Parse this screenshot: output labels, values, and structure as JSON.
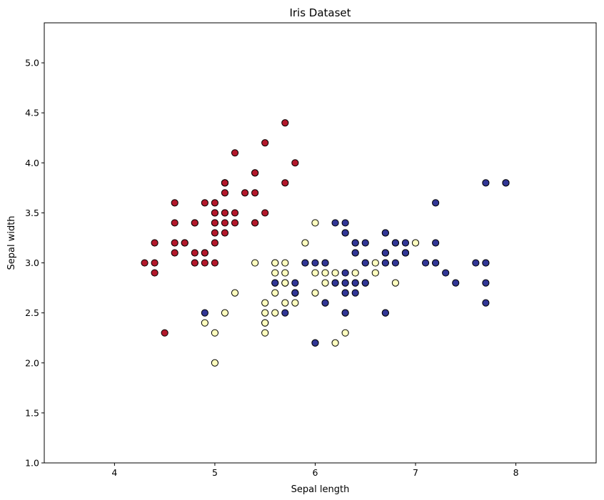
{
  "chart_data": {
    "type": "scatter",
    "title": "Iris Dataset",
    "xlabel": "Sepal length",
    "ylabel": "Sepal width",
    "xlim": [
      3.3,
      8.8
    ],
    "ylim": [
      1.0,
      5.4
    ],
    "xticks": [
      4,
      5,
      6,
      7,
      8
    ],
    "xtick_labels": [
      "4",
      "5",
      "6",
      "7",
      "8"
    ],
    "yticks": [
      1.0,
      1.5,
      2.0,
      2.5,
      3.0,
      3.5,
      4.0,
      4.5,
      5.0
    ],
    "ytick_labels": [
      "1.0",
      "1.5",
      "2.0",
      "2.5",
      "3.0",
      "3.5",
      "4.0",
      "4.5",
      "5.0"
    ],
    "grid": false,
    "series": [
      {
        "color": "#b2182b",
        "points": [
          [
            5.1,
            3.5
          ],
          [
            4.9,
            3.0
          ],
          [
            4.7,
            3.2
          ],
          [
            4.6,
            3.1
          ],
          [
            5.0,
            3.6
          ],
          [
            5.4,
            3.9
          ],
          [
            4.6,
            3.4
          ],
          [
            5.0,
            3.4
          ],
          [
            4.4,
            2.9
          ],
          [
            4.9,
            3.1
          ],
          [
            5.4,
            3.7
          ],
          [
            4.8,
            3.4
          ],
          [
            4.8,
            3.0
          ],
          [
            4.3,
            3.0
          ],
          [
            5.8,
            4.0
          ],
          [
            5.7,
            4.4
          ],
          [
            5.4,
            3.9
          ],
          [
            5.1,
            3.5
          ],
          [
            5.7,
            3.8
          ],
          [
            5.1,
            3.8
          ],
          [
            5.4,
            3.4
          ],
          [
            5.1,
            3.7
          ],
          [
            4.6,
            3.6
          ],
          [
            5.1,
            3.3
          ],
          [
            4.8,
            3.4
          ],
          [
            5.0,
            3.0
          ],
          [
            5.0,
            3.4
          ],
          [
            5.2,
            3.5
          ],
          [
            5.2,
            3.4
          ],
          [
            4.7,
            3.2
          ],
          [
            4.8,
            3.1
          ],
          [
            5.4,
            3.4
          ],
          [
            5.2,
            4.1
          ],
          [
            5.5,
            4.2
          ],
          [
            4.9,
            3.1
          ],
          [
            5.0,
            3.2
          ],
          [
            5.5,
            3.5
          ],
          [
            4.9,
            3.6
          ],
          [
            4.4,
            3.0
          ],
          [
            5.1,
            3.4
          ],
          [
            5.0,
            3.5
          ],
          [
            4.5,
            2.3
          ],
          [
            4.4,
            3.2
          ],
          [
            5.0,
            3.5
          ],
          [
            5.1,
            3.8
          ],
          [
            4.8,
            3.0
          ],
          [
            5.1,
            3.8
          ],
          [
            4.6,
            3.2
          ],
          [
            5.3,
            3.7
          ],
          [
            5.0,
            3.3
          ]
        ]
      },
      {
        "color": "#ffffbf",
        "points": [
          [
            7.0,
            3.2
          ],
          [
            5.5,
            2.3
          ],
          [
            5.7,
            2.8
          ],
          [
            4.9,
            2.4
          ],
          [
            6.6,
            2.9
          ],
          [
            5.2,
            2.7
          ],
          [
            5.0,
            2.0
          ],
          [
            5.9,
            3.0
          ],
          [
            6.0,
            2.2
          ],
          [
            6.1,
            2.9
          ],
          [
            5.6,
            2.9
          ],
          [
            5.6,
            3.0
          ],
          [
            5.8,
            2.7
          ],
          [
            6.2,
            2.2
          ],
          [
            5.6,
            2.5
          ],
          [
            5.9,
            3.2
          ],
          [
            6.1,
            2.8
          ],
          [
            6.4,
            2.9
          ],
          [
            6.6,
            3.0
          ],
          [
            6.8,
            2.8
          ],
          [
            6.0,
            2.9
          ],
          [
            5.7,
            2.6
          ],
          [
            5.5,
            2.4
          ],
          [
            5.5,
            2.4
          ],
          [
            5.8,
            2.7
          ],
          [
            6.0,
            2.7
          ],
          [
            5.4,
            3.0
          ],
          [
            6.0,
            3.4
          ],
          [
            6.3,
            2.3
          ],
          [
            5.6,
            3.0
          ],
          [
            5.5,
            2.5
          ],
          [
            5.5,
            2.6
          ],
          [
            6.1,
            3.0
          ],
          [
            5.8,
            2.6
          ],
          [
            5.0,
            2.3
          ],
          [
            5.6,
            2.7
          ],
          [
            5.7,
            3.0
          ],
          [
            5.7,
            2.9
          ],
          [
            6.2,
            2.9
          ],
          [
            5.1,
            2.5
          ],
          [
            5.7,
            2.8
          ],
          [
            6.5,
            2.8
          ]
        ]
      },
      {
        "color": "#313695",
        "points": [
          [
            6.4,
            3.2
          ],
          [
            6.9,
            3.1
          ],
          [
            6.5,
            2.8
          ],
          [
            6.3,
            3.3
          ],
          [
            6.7,
            3.1
          ],
          [
            6.3,
            2.5
          ],
          [
            6.7,
            3.0
          ],
          [
            6.2,
            2.8
          ],
          [
            6.4,
            3.1
          ],
          [
            6.8,
            3.2
          ],
          [
            6.9,
            3.2
          ],
          [
            5.8,
            2.7
          ],
          [
            6.1,
            2.6
          ],
          [
            6.3,
            3.4
          ],
          [
            6.4,
            2.8
          ],
          [
            6.7,
            3.3
          ],
          [
            6.7,
            2.5
          ],
          [
            5.6,
            2.8
          ],
          [
            6.3,
            2.7
          ],
          [
            6.4,
            3.2
          ],
          [
            7.2,
            3.0
          ],
          [
            7.4,
            2.8
          ],
          [
            7.9,
            3.8
          ],
          [
            6.4,
            2.8
          ],
          [
            6.3,
            2.8
          ],
          [
            7.7,
            3.0
          ],
          [
            6.3,
            2.9
          ],
          [
            5.8,
            2.8
          ],
          [
            7.1,
            3.0
          ],
          [
            6.5,
            3.0
          ],
          [
            7.6,
            3.0
          ],
          [
            7.3,
            2.9
          ],
          [
            6.7,
            2.5
          ],
          [
            7.2,
            3.6
          ],
          [
            6.5,
            3.2
          ],
          [
            6.8,
            3.0
          ],
          [
            5.7,
            2.5
          ],
          [
            6.4,
            2.7
          ],
          [
            7.7,
            3.8
          ],
          [
            7.7,
            2.6
          ],
          [
            6.9,
            3.1
          ],
          [
            5.6,
            2.8
          ],
          [
            7.7,
            2.8
          ],
          [
            6.3,
            2.7
          ],
          [
            7.2,
            3.2
          ],
          [
            6.2,
            2.8
          ],
          [
            6.1,
            3.0
          ],
          [
            7.2,
            3.0
          ],
          [
            7.9,
            3.8
          ],
          [
            6.3,
            2.8
          ],
          [
            6.1,
            2.6
          ],
          [
            7.7,
            3.0
          ],
          [
            6.0,
            3.0
          ],
          [
            6.9,
            3.1
          ],
          [
            6.7,
            3.1
          ],
          [
            5.8,
            2.7
          ],
          [
            6.8,
            3.2
          ],
          [
            6.7,
            3.3
          ],
          [
            6.5,
            3.0
          ],
          [
            5.9,
            3.0
          ],
          [
            6.2,
            3.4
          ],
          [
            4.9,
            2.5
          ],
          [
            6.7,
            3.0
          ],
          [
            6.3,
            2.5
          ],
          [
            6.0,
            2.2
          ],
          [
            6.7,
            3.1
          ],
          [
            6.3,
            3.3
          ],
          [
            6.4,
            3.1
          ]
        ]
      }
    ]
  }
}
